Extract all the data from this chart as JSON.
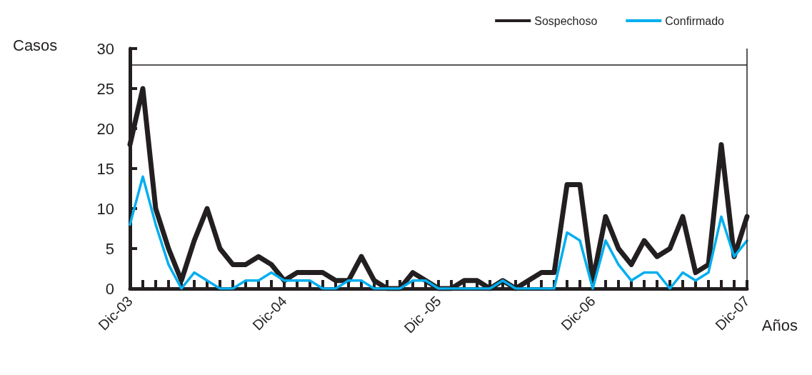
{
  "chart_data": {
    "type": "line",
    "ylabel": "Casos",
    "xlabel": "Años",
    "categories": [
      "Dic-03",
      null,
      null,
      null,
      null,
      null,
      null,
      null,
      null,
      null,
      null,
      null,
      "Dic-04",
      null,
      null,
      null,
      null,
      null,
      null,
      null,
      null,
      null,
      null,
      null,
      "Dic -05",
      null,
      null,
      null,
      null,
      null,
      null,
      null,
      null,
      null,
      null,
      null,
      "Dic-06",
      null,
      null,
      null,
      null,
      null,
      null,
      null,
      null,
      null,
      null,
      null,
      "Dic-07"
    ],
    "series": [
      {
        "name": "Sospechoso",
        "color": "#231f20",
        "values": [
          18,
          25,
          10,
          5,
          1,
          6,
          10,
          5,
          3,
          3,
          4,
          3,
          1,
          2,
          2,
          2,
          1,
          1,
          4,
          1,
          0,
          0,
          2,
          1,
          0,
          0,
          1,
          1,
          0,
          1,
          0,
          1,
          2,
          2,
          13,
          13,
          1,
          9,
          5,
          3,
          6,
          4,
          5,
          9,
          2,
          3,
          18,
          4,
          9
        ]
      },
      {
        "name": "Confirmado",
        "color": "#00aeef",
        "values": [
          8,
          14,
          8,
          3,
          0,
          2,
          1,
          0,
          0,
          1,
          1,
          2,
          1,
          1,
          1,
          0,
          0,
          1,
          1,
          0,
          0,
          0,
          1,
          1,
          0,
          0,
          0,
          0,
          0,
          1,
          0,
          0,
          0,
          0,
          7,
          6,
          0,
          6,
          3,
          1,
          2,
          2,
          0,
          2,
          1,
          2,
          9,
          4,
          6
        ]
      }
    ],
    "ylim": [
      0,
      30
    ],
    "yticks": [
      0,
      5,
      10,
      15,
      20,
      25,
      30
    ],
    "ref_lines": [
      {
        "axis": "y",
        "value": 28,
        "color": "#231f20"
      },
      {
        "axis": "x",
        "value": "Dic-07",
        "color": "#231f20"
      }
    ],
    "grid": false,
    "legend": "top right",
    "marker": "none",
    "line_style": "solid"
  }
}
